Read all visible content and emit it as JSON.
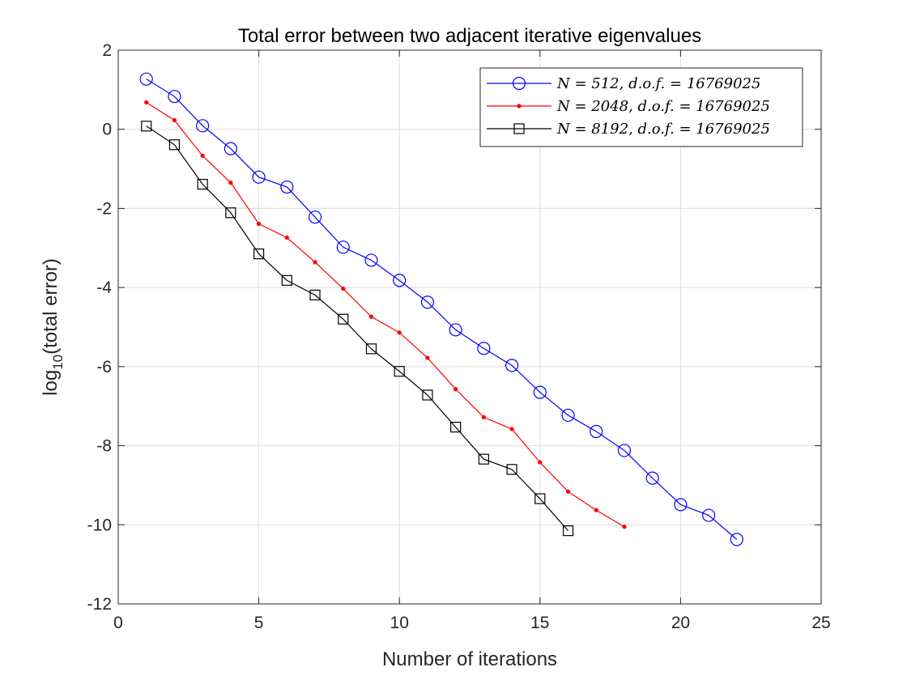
{
  "chart_data": {
    "type": "line",
    "title": "Total error between two adjacent iterative eigenvalues",
    "xlabel": "Number of iterations",
    "ylabel_main": "log",
    "ylabel_sub": "10",
    "ylabel_rest": "(total error)",
    "xlim": [
      0,
      25
    ],
    "ylim": [
      -12,
      2
    ],
    "xticks": [
      0,
      5,
      10,
      15,
      20,
      25
    ],
    "yticks": [
      -12,
      -10,
      -8,
      -6,
      -4,
      -2,
      0,
      2
    ],
    "grid": true,
    "legend_position": "top-right",
    "series": [
      {
        "name": "N = 512,  d.o.f. = 16769025",
        "color": "#0000ff",
        "marker": "circle",
        "x": [
          1,
          2,
          3,
          4,
          5,
          6,
          7,
          8,
          9,
          10,
          11,
          12,
          13,
          14,
          15,
          16,
          17,
          18,
          19,
          20,
          21,
          22
        ],
        "y": [
          1.27,
          0.83,
          0.09,
          -0.49,
          -1.21,
          -1.46,
          -2.22,
          -2.98,
          -3.31,
          -3.82,
          -4.37,
          -5.07,
          -5.54,
          -5.97,
          -6.65,
          -7.23,
          -7.64,
          -8.12,
          -8.82,
          -9.49,
          -9.76,
          -10.37
        ]
      },
      {
        "name": "N = 2048, d.o.f. = 16769025",
        "color": "#ff0000",
        "marker": "dot",
        "x": [
          1,
          2,
          3,
          4,
          5,
          6,
          7,
          8,
          9,
          10,
          11,
          12,
          13,
          14,
          15,
          16,
          17,
          18
        ],
        "y": [
          0.68,
          0.23,
          -0.67,
          -1.35,
          -2.39,
          -2.74,
          -3.36,
          -4.03,
          -4.74,
          -5.14,
          -5.78,
          -6.57,
          -7.28,
          -7.58,
          -8.42,
          -9.16,
          -9.63,
          -10.05
        ]
      },
      {
        "name": "N = 8192, d.o.f. = 16769025",
        "color": "#000000",
        "marker": "square",
        "x": [
          1,
          2,
          3,
          4,
          5,
          6,
          7,
          8,
          9,
          10,
          11,
          12,
          13,
          14,
          15,
          16
        ],
        "y": [
          0.08,
          -0.39,
          -1.39,
          -2.11,
          -3.15,
          -3.82,
          -4.19,
          -4.8,
          -5.55,
          -6.12,
          -6.72,
          -7.53,
          -8.34,
          -8.6,
          -9.34,
          -10.15
        ]
      }
    ]
  }
}
